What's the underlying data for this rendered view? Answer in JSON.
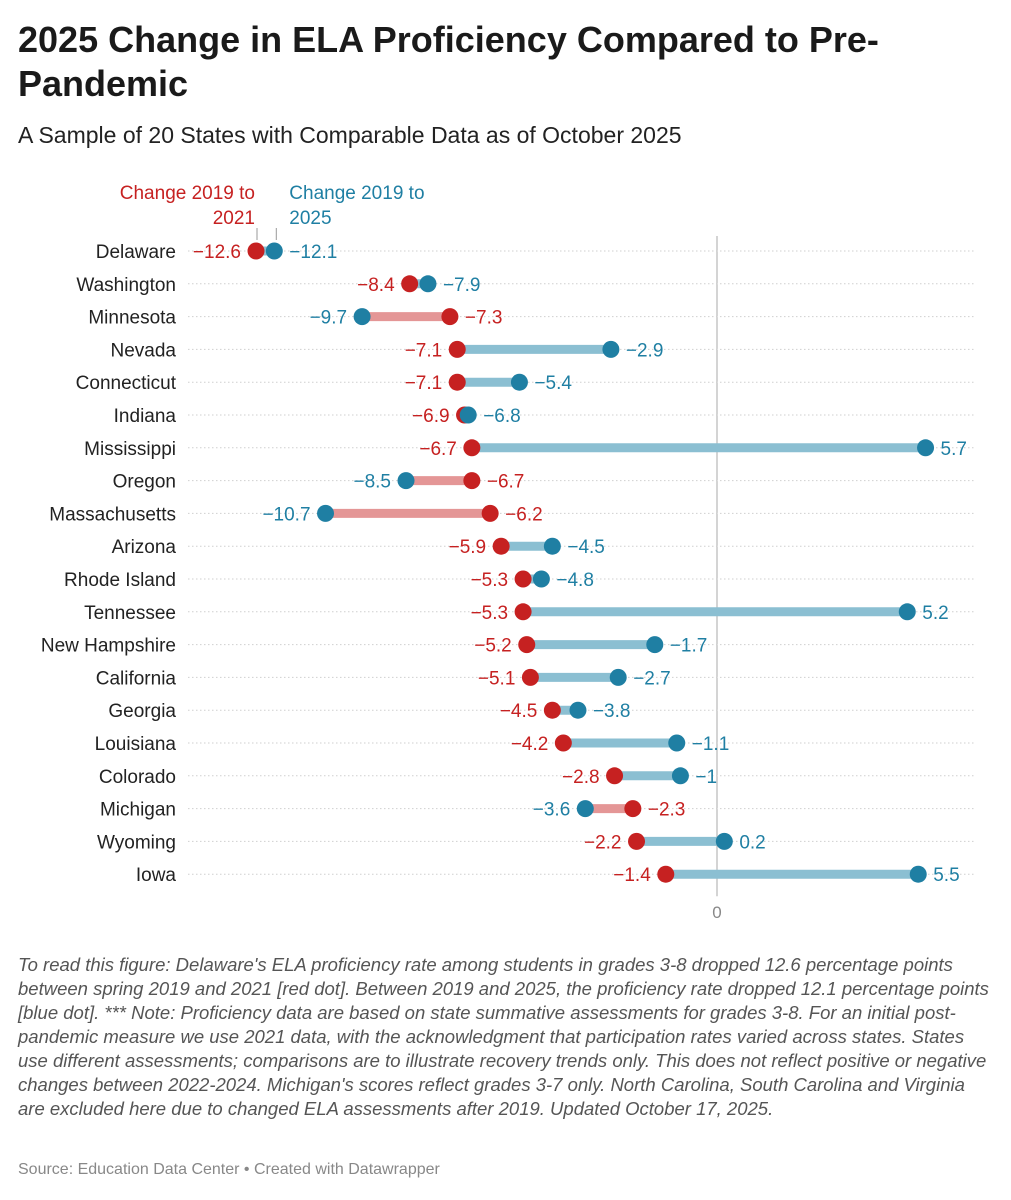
{
  "title": "2025 Change in ELA Proficiency Compared to Pre-Pandemic",
  "subtitle": "A Sample of 20 States with Comparable Data as of October 2025",
  "notes": "To read this figure: Delaware's ELA proficiency rate among students in grades 3-8 dropped 12.6 percentage points between spring 2019 and 2021 [red dot]. Between 2019 and 2025, the proficiency rate dropped 12.1 percentage points [blue dot]. *** Note: Proficiency data are based on state summative assessments for grades 3-8. For an initial post-pandemic measure we use 2021 data, with the acknowledgment that participation rates varied across states. States use different assessments; comparisons are to illustrate recovery trends only. This does not reflect positive or negative changes between 2022-2024. Michigan's scores reflect grades 3-7 only. North Carolina, South Carolina and Virginia are excluded here due to changed ELA assessments after 2019. Updated October 17, 2025.",
  "source": {
    "label": "Source: Education Data Center",
    "separator": "•",
    "credit": "Created with Datawrapper"
  },
  "colors": {
    "red": "#c62121",
    "blue": "#1f7fa3",
    "red_bar": "#e49696",
    "blue_bar": "#8bbfd2"
  },
  "chart_data": {
    "type": "dumbbell",
    "x_tick_labels": [
      "0"
    ],
    "xlim": [
      -12.6,
      5.7
    ],
    "series": [
      {
        "name": "Change 2019 to 2021",
        "color": "#c62121"
      },
      {
        "name": "Change 2019 to 2025",
        "color": "#1f7fa3"
      }
    ],
    "rows": [
      {
        "state": "Delaware",
        "change_2021": -12.6,
        "change_2025": -12.1,
        "label_2021": "−12.6",
        "label_2025": "−12.1"
      },
      {
        "state": "Washington",
        "change_2021": -8.4,
        "change_2025": -7.9,
        "label_2021": "−8.4",
        "label_2025": "−7.9"
      },
      {
        "state": "Minnesota",
        "change_2021": -7.3,
        "change_2025": -9.7,
        "label_2021": "−7.3",
        "label_2025": "−9.7"
      },
      {
        "state": "Nevada",
        "change_2021": -7.1,
        "change_2025": -2.9,
        "label_2021": "−7.1",
        "label_2025": "−2.9"
      },
      {
        "state": "Connecticut",
        "change_2021": -7.1,
        "change_2025": -5.4,
        "label_2021": "−7.1",
        "label_2025": "−5.4"
      },
      {
        "state": "Indiana",
        "change_2021": -6.9,
        "change_2025": -6.8,
        "label_2021": "−6.9",
        "label_2025": "−6.8"
      },
      {
        "state": "Mississippi",
        "change_2021": -6.7,
        "change_2025": 5.7,
        "label_2021": "−6.7",
        "label_2025": "5.7"
      },
      {
        "state": "Oregon",
        "change_2021": -6.7,
        "change_2025": -8.5,
        "label_2021": "−6.7",
        "label_2025": "−8.5"
      },
      {
        "state": "Massachusetts",
        "change_2021": -6.2,
        "change_2025": -10.7,
        "label_2021": "−6.2",
        "label_2025": "−10.7"
      },
      {
        "state": "Arizona",
        "change_2021": -5.9,
        "change_2025": -4.5,
        "label_2021": "−5.9",
        "label_2025": "−4.5"
      },
      {
        "state": "Rhode Island",
        "change_2021": -5.3,
        "change_2025": -4.8,
        "label_2021": "−5.3",
        "label_2025": "−4.8"
      },
      {
        "state": "Tennessee",
        "change_2021": -5.3,
        "change_2025": 5.2,
        "label_2021": "−5.3",
        "label_2025": "5.2"
      },
      {
        "state": "New Hampshire",
        "change_2021": -5.2,
        "change_2025": -1.7,
        "label_2021": "−5.2",
        "label_2025": "−1.7"
      },
      {
        "state": "California",
        "change_2021": -5.1,
        "change_2025": -2.7,
        "label_2021": "−5.1",
        "label_2025": "−2.7"
      },
      {
        "state": "Georgia",
        "change_2021": -4.5,
        "change_2025": -3.8,
        "label_2021": "−4.5",
        "label_2025": "−3.8"
      },
      {
        "state": "Louisiana",
        "change_2021": -4.2,
        "change_2025": -1.1,
        "label_2021": "−4.2",
        "label_2025": "−1.1"
      },
      {
        "state": "Colorado",
        "change_2021": -2.8,
        "change_2025": -1.0,
        "label_2021": "−2.8",
        "label_2025": "−1"
      },
      {
        "state": "Michigan",
        "change_2021": -2.3,
        "change_2025": -3.6,
        "label_2021": "−2.3",
        "label_2025": "−3.6"
      },
      {
        "state": "Wyoming",
        "change_2021": -2.2,
        "change_2025": 0.2,
        "label_2021": "−2.2",
        "label_2025": "0.2"
      },
      {
        "state": "Iowa",
        "change_2021": -1.4,
        "change_2025": 5.5,
        "label_2021": "−1.4",
        "label_2025": "5.5"
      }
    ]
  }
}
